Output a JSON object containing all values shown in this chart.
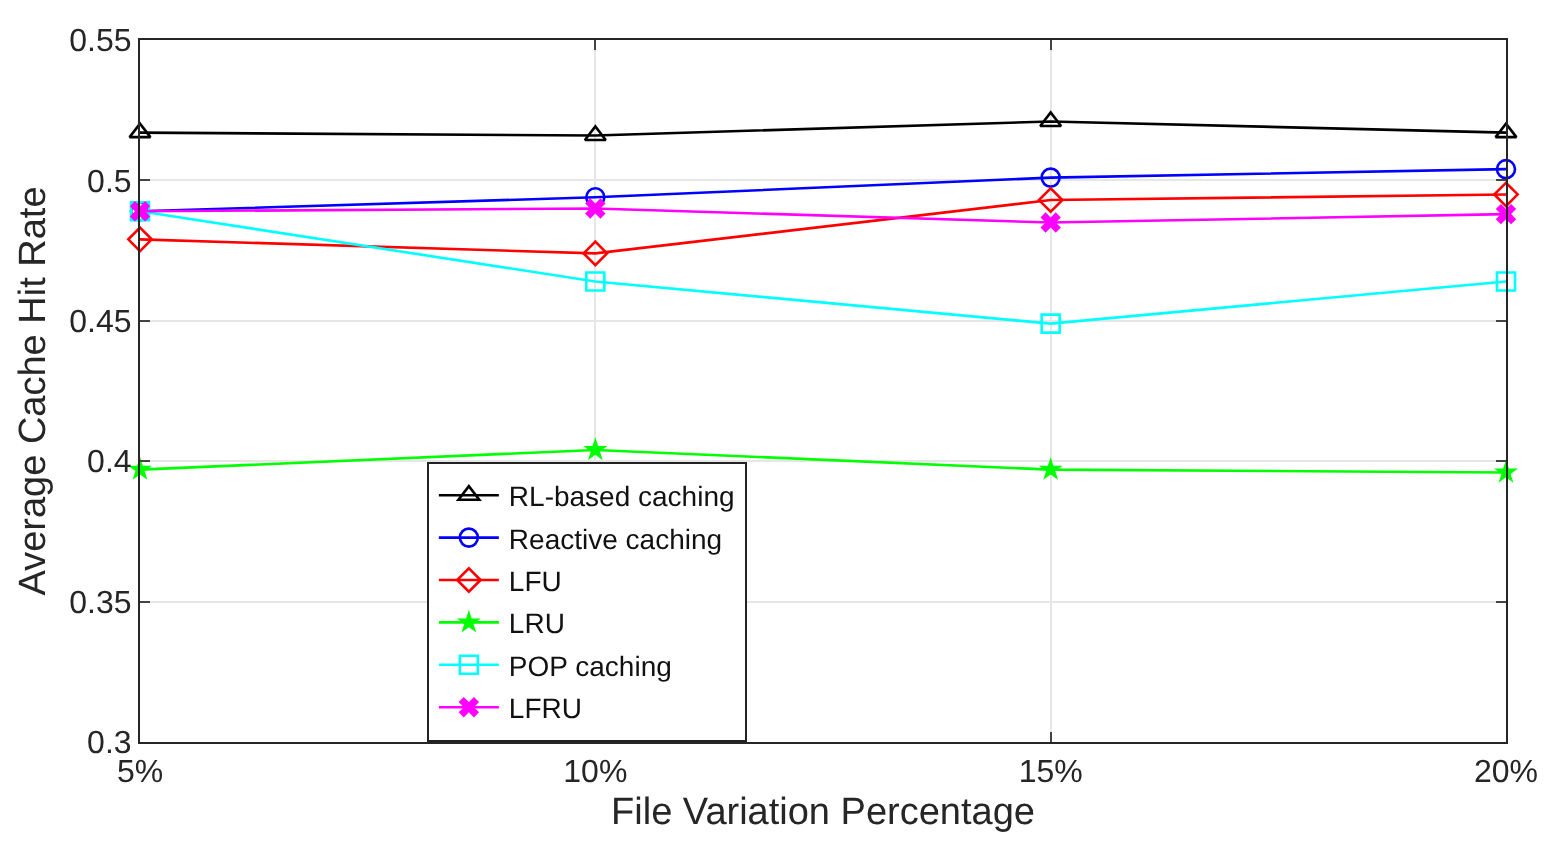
{
  "chart_data": {
    "type": "line",
    "xlabel": "File Variation Percentage",
    "ylabel": "Average Cache Hit Rate",
    "categories": [
      "5%",
      "10%",
      "15%",
      "20%"
    ],
    "ylim": [
      0.3,
      0.55
    ],
    "yticks": [
      0.3,
      0.35,
      0.4,
      0.45,
      0.5,
      0.55
    ],
    "grid": true,
    "legend": "bottom left",
    "line_style": "solid",
    "series": [
      {
        "name": "RL-based caching",
        "color": "#000000",
        "marker": "triangle",
        "values": [
          0.517,
          0.516,
          0.521,
          0.517
        ]
      },
      {
        "name": "Reactive caching",
        "color": "#0000ff",
        "marker": "circle",
        "values": [
          0.489,
          0.494,
          0.501,
          0.504
        ]
      },
      {
        "name": "LFU",
        "color": "#ff0000",
        "marker": "diamond",
        "values": [
          0.479,
          0.474,
          0.493,
          0.495
        ]
      },
      {
        "name": "LRU",
        "color": "#00ff00",
        "marker": "star",
        "values": [
          0.397,
          0.404,
          0.397,
          0.396
        ]
      },
      {
        "name": "POP caching",
        "color": "#00ffff",
        "marker": "square",
        "values": [
          0.489,
          0.464,
          0.449,
          0.464
        ]
      },
      {
        "name": "LFRU",
        "color": "#ff00ff",
        "marker": "cross",
        "values": [
          0.489,
          0.49,
          0.485,
          0.488
        ]
      }
    ]
  }
}
